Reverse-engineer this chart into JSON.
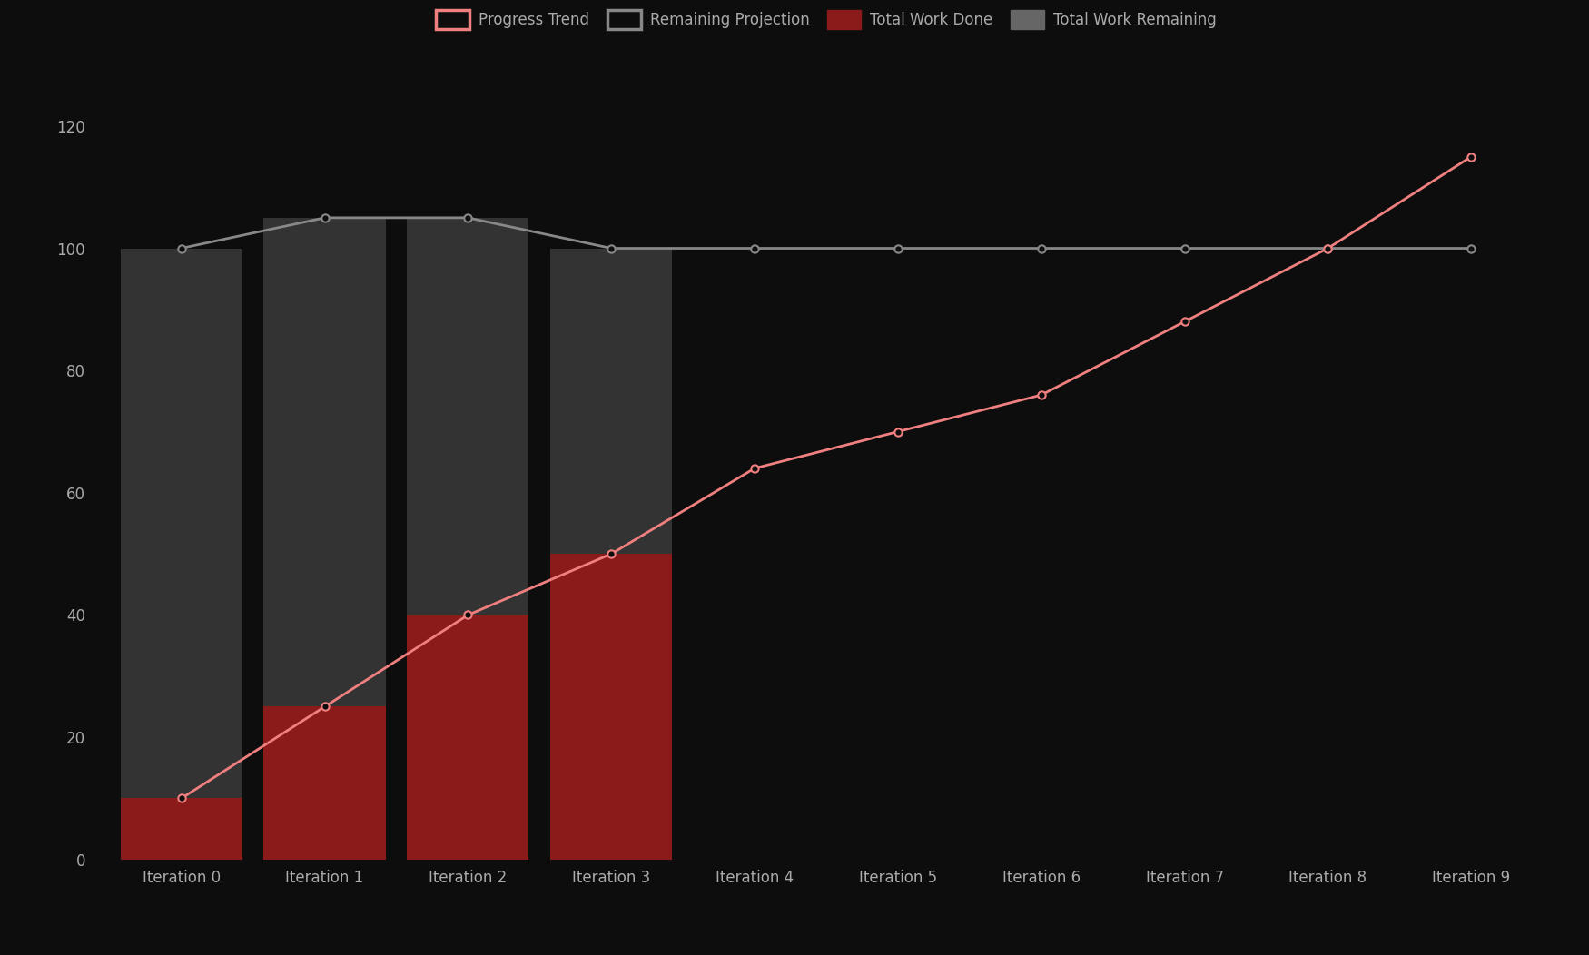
{
  "iterations": [
    "Iteration 0",
    "Iteration 1",
    "Iteration 2",
    "Iteration 3",
    "Iteration 4",
    "Iteration 5",
    "Iteration 6",
    "Iteration 7",
    "Iteration 8",
    "Iteration 9"
  ],
  "backlog": [
    100,
    105,
    105,
    100,
    100,
    100,
    100,
    100,
    100,
    100
  ],
  "progress_trend": [
    10,
    25,
    40,
    50,
    64,
    70,
    76,
    88,
    100,
    115
  ],
  "work_done": [
    10,
    25,
    40,
    50,
    null,
    null,
    null,
    null,
    null,
    null
  ],
  "work_remaining": [
    90,
    80,
    65,
    50,
    null,
    null,
    null,
    null,
    null,
    null
  ],
  "bar_width": 0.85,
  "bg_color": "#0d0d0d",
  "work_done_color": "#8b1a1a",
  "work_remaining_color": "#333333",
  "progress_trend_color": "#f08080",
  "backlog_color": "#888888",
  "ylim": [
    0,
    125
  ],
  "yticks": [
    0,
    20,
    40,
    60,
    80,
    100,
    120
  ],
  "legend_fontsize": 12,
  "tick_fontsize": 12,
  "text_color": "#aaaaaa",
  "figsize": [
    17.5,
    10.52
  ],
  "dpi": 100
}
